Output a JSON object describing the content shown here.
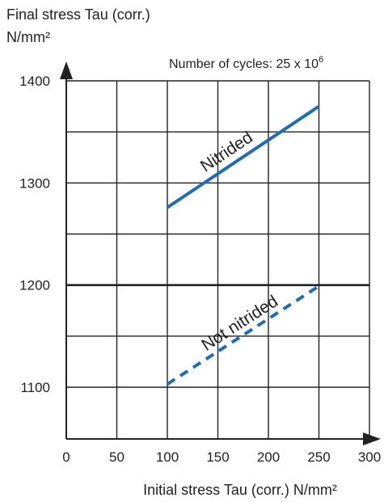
{
  "chart_data": {
    "type": "line",
    "title": "",
    "ylabel_line1": "Final stress Tau (corr.)",
    "ylabel_line2": "N/mm²",
    "xlabel": "Initial stress Tau (corr.) N/mm²",
    "annotation": {
      "prefix": "Number of cycles: 25 x 10",
      "exponent": "6"
    },
    "xlim": [
      0,
      300
    ],
    "ylim": [
      1050,
      1400
    ],
    "x_ticks": [
      0,
      50,
      100,
      150,
      200,
      250,
      300
    ],
    "x_tick_labels": [
      "0",
      "50",
      "100",
      "150",
      "200",
      "250",
      "300"
    ],
    "y_ticks": [
      1100,
      1200,
      1300,
      1400
    ],
    "y_tick_labels": [
      "1100",
      "1200",
      "1300",
      "1400"
    ],
    "grid": true,
    "reference_line_y": 1200,
    "series": [
      {
        "name": "Nitrided",
        "style": "solid",
        "color": "#1f6db5",
        "x": [
          100,
          250
        ],
        "y": [
          1276,
          1375
        ]
      },
      {
        "name": "Not nitrided",
        "style": "dashed",
        "color": "#1f6db5",
        "x": [
          100,
          250
        ],
        "y": [
          1103,
          1199
        ]
      }
    ]
  }
}
